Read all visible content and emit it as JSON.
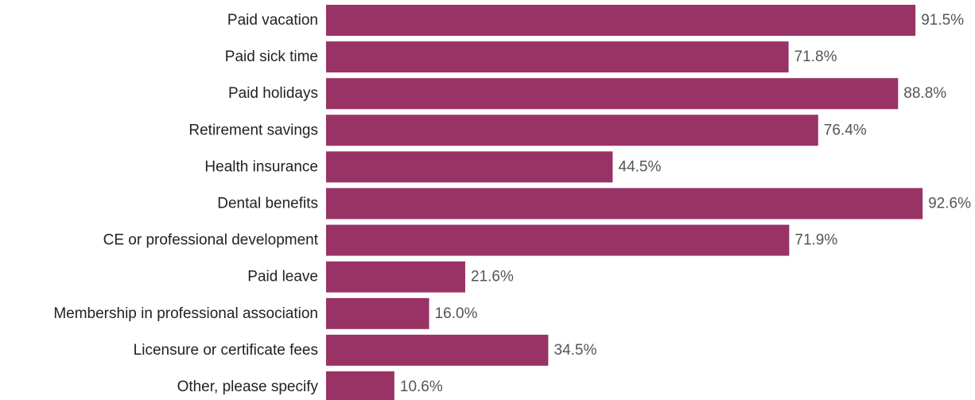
{
  "chart_data": {
    "type": "bar",
    "orientation": "horizontal",
    "title": "",
    "xlabel": "",
    "ylabel": "",
    "xlim": [
      0,
      100
    ],
    "grid": false,
    "bar_color": "#993366",
    "categories": [
      "Paid vacation",
      "Paid sick time",
      "Paid holidays",
      "Retirement savings",
      "Health insurance",
      "Dental benefits",
      "CE or professional development",
      "Paid leave",
      "Membership in professional association",
      "Licensure or certificate fees",
      "Other, please specify"
    ],
    "values": [
      91.5,
      71.8,
      88.8,
      76.4,
      44.5,
      92.6,
      71.9,
      21.6,
      16.0,
      34.5,
      10.6
    ],
    "value_labels": [
      "91.5%",
      "71.8%",
      "88.8%",
      "76.4%",
      "44.5%",
      "92.6%",
      "71.9%",
      "21.6%",
      "16.0%",
      "34.5%",
      "10.6%"
    ]
  }
}
